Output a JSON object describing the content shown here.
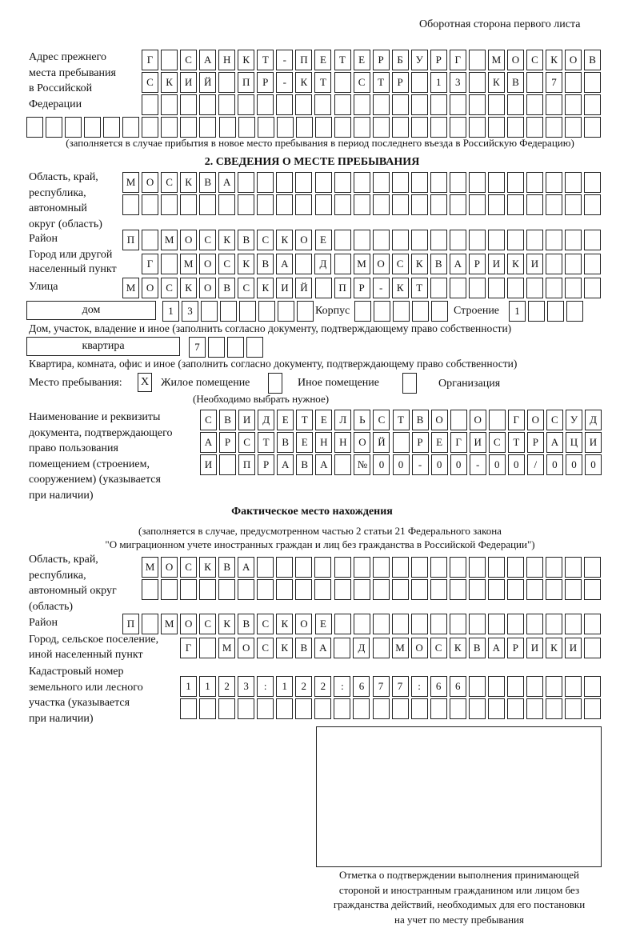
{
  "header": {
    "page_side": "Оборотная сторона первого листа"
  },
  "previous_address": {
    "label": [
      "Адрес прежнего",
      "места пребывания",
      "в Российской",
      "Федерации"
    ],
    "rows": [
      [
        "Г",
        "",
        "С",
        "А",
        "Н",
        "К",
        "Т",
        "-",
        "П",
        "Е",
        "Т",
        "Е",
        "Р",
        "Б",
        "У",
        "Р",
        "Г",
        "",
        "М",
        "О",
        "С",
        "К",
        "О",
        "В"
      ],
      [
        "С",
        "К",
        "И",
        "Й",
        "",
        "П",
        "Р",
        "-",
        "К",
        "Т",
        "",
        "С",
        "Т",
        "Р",
        "",
        "1",
        "3",
        "",
        "К",
        "В",
        "",
        "7",
        "",
        ""
      ],
      [
        "",
        "",
        "",
        "",
        "",
        "",
        "",
        "",
        "",
        "",
        "",
        "",
        "",
        "",
        "",
        "",
        "",
        "",
        "",
        "",
        "",
        "",
        "",
        ""
      ],
      [
        "",
        "",
        "",
        "",
        "",
        "",
        "",
        "",
        "",
        "",
        "",
        "",
        "",
        "",
        "",
        "",
        "",
        "",
        "",
        "",
        "",
        "",
        "",
        "",
        "",
        "",
        "",
        "",
        "",
        ""
      ]
    ],
    "note": "(заполняется в случае прибытия в новое место пребывания в период последнего въезда в Российскую Федерацию)"
  },
  "section2": {
    "title": "2. СВЕДЕНИЯ О МЕСТЕ ПРЕБЫВАНИЯ",
    "region": {
      "label": [
        "Область, край,",
        "республика,",
        "автономный",
        "округ (область)"
      ],
      "rows": [
        [
          "М",
          "О",
          "С",
          "К",
          "В",
          "А",
          "",
          "",
          "",
          "",
          "",
          "",
          "",
          "",
          "",
          "",
          "",
          "",
          "",
          "",
          "",
          "",
          "",
          "",
          ""
        ],
        [
          "",
          "",
          "",
          "",
          "",
          "",
          "",
          "",
          "",
          "",
          "",
          "",
          "",
          "",
          "",
          "",
          "",
          "",
          "",
          "",
          "",
          "",
          "",
          "",
          ""
        ]
      ]
    },
    "district": {
      "label": "Район",
      "cells": [
        "П",
        "",
        "М",
        "О",
        "С",
        "К",
        "В",
        "С",
        "К",
        "О",
        "Е",
        "",
        "",
        "",
        "",
        "",
        "",
        "",
        "",
        "",
        "",
        "",
        "",
        "",
        ""
      ]
    },
    "city": {
      "label": [
        "Город или другой",
        "населенный пункт"
      ],
      "cells": [
        "Г",
        "",
        "М",
        "О",
        "С",
        "К",
        "В",
        "А",
        "",
        "Д",
        "",
        "М",
        "О",
        "С",
        "К",
        "В",
        "А",
        "Р",
        "И",
        "К",
        "И",
        "",
        "",
        ""
      ]
    },
    "street": {
      "label": "Улица",
      "cells": [
        "М",
        "О",
        "С",
        "К",
        "О",
        "В",
        "С",
        "К",
        "И",
        "Й",
        "",
        "П",
        "Р",
        "-",
        "К",
        "Т",
        "",
        "",
        "",
        "",
        "",
        "",
        "",
        "",
        ""
      ]
    },
    "house": {
      "type_value": "дом",
      "cells": [
        "1",
        "3",
        "",
        "",
        "",
        "",
        "",
        ""
      ],
      "korpus_label": "Корпус",
      "korpus_cells": [
        "",
        "",
        "",
        "",
        ""
      ],
      "building_label": "Строение",
      "building_cells": [
        "1",
        "",
        "",
        ""
      ],
      "note": "Дом, участок, владение и иное (заполнить согласно документу, подтверждающему право собственности)"
    },
    "apartment": {
      "type_value": "квартира",
      "cells": [
        "7",
        "",
        "",
        ""
      ],
      "note": "Квартира, комната, офис и иное (заполнить согласно документу, подтверждающему право собственности)"
    },
    "stay_place": {
      "label": "Место пребывания:",
      "options": [
        {
          "label": "Жилое помещение",
          "mark": "X"
        },
        {
          "label": "Иное помещение",
          "mark": ""
        },
        {
          "label": "Организация",
          "mark": ""
        }
      ],
      "note": "(Необходимо выбрать нужное)"
    },
    "document": {
      "label": [
        "Наименование и реквизиты",
        "документа, подтверждающего",
        "право пользования",
        "помещением (строением,",
        "сооружением) (указывается",
        "при наличии)"
      ],
      "rows": [
        [
          "С",
          "В",
          "И",
          "Д",
          "Е",
          "Т",
          "Е",
          "Л",
          "Ь",
          "С",
          "Т",
          "В",
          "О",
          "",
          "О",
          "",
          "Г",
          "О",
          "С",
          "У",
          "Д"
        ],
        [
          "А",
          "Р",
          "С",
          "Т",
          "В",
          "Е",
          "Н",
          "Н",
          "О",
          "Й",
          "",
          "Р",
          "Е",
          "Г",
          "И",
          "С",
          "Т",
          "Р",
          "А",
          "Ц",
          "И"
        ],
        [
          "И",
          "",
          "П",
          "Р",
          "А",
          "В",
          "А",
          "",
          "№",
          "0",
          "0",
          "-",
          "0",
          "0",
          "-",
          "0",
          "0",
          "/",
          "0",
          "0",
          "0"
        ]
      ]
    }
  },
  "actual_location": {
    "title": "Фактическое место нахождения",
    "note": [
      "(заполняется в случае, предусмотренном частью 2 статьи 21 Федерального закона",
      "\"О миграционном учете иностранных граждан и лиц без гражданства в Российской Федерации\")"
    ],
    "region": {
      "label": [
        "Область, край,",
        "республика,",
        "автономный округ",
        "(область)"
      ],
      "rows": [
        [
          "М",
          "О",
          "С",
          "К",
          "В",
          "А",
          "",
          "",
          "",
          "",
          "",
          "",
          "",
          "",
          "",
          "",
          "",
          "",
          "",
          "",
          "",
          "",
          "",
          ""
        ],
        [
          "",
          "",
          "",
          "",
          "",
          "",
          "",
          "",
          "",
          "",
          "",
          "",
          "",
          "",
          "",
          "",
          "",
          "",
          "",
          "",
          "",
          "",
          "",
          ""
        ]
      ]
    },
    "district": {
      "label": "Район",
      "cells": [
        "П",
        "",
        "М",
        "О",
        "С",
        "К",
        "В",
        "С",
        "К",
        "О",
        "Е",
        "",
        "",
        "",
        "",
        "",
        "",
        "",
        "",
        "",
        "",
        "",
        "",
        "",
        ""
      ]
    },
    "city": {
      "label": [
        "Город, сельское поселение,",
        "иной населенный пункт"
      ],
      "cells": [
        "Г",
        "",
        "М",
        "О",
        "С",
        "К",
        "В",
        "А",
        "",
        "Д",
        "",
        "М",
        "О",
        "С",
        "К",
        "В",
        "А",
        "Р",
        "И",
        "К",
        "И",
        ""
      ]
    },
    "cadastral": {
      "label": [
        "Кадастровый номер",
        "земельного или лесного",
        "участка (указывается",
        "при наличии)"
      ],
      "rows": [
        [
          "1",
          "1",
          "2",
          "3",
          ":",
          "1",
          "2",
          "2",
          ":",
          "6",
          "7",
          "7",
          ":",
          "6",
          "6",
          "",
          "",
          "",
          "",
          "",
          "",
          ""
        ],
        [
          "",
          "",
          "",
          "",
          "",
          "",
          "",
          "",
          "",
          "",
          "",
          "",
          "",
          "",
          "",
          "",
          "",
          "",
          "",
          "",
          "",
          ""
        ]
      ]
    }
  },
  "confirmation": {
    "caption": [
      "Отметка о подтверждении выполнения принимающей",
      "стороной и иностранным гражданином или лицом без",
      "гражданства действий, необходимых для его постановки",
      "на учет по месту пребывания"
    ]
  }
}
